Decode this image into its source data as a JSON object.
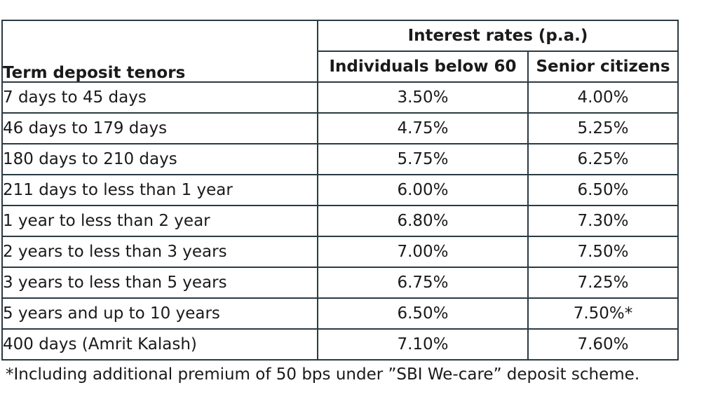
{
  "table": {
    "group_header": "Interest rates (p.a.)",
    "tenor_header": "Term deposit tenors",
    "col_individuals": "Individuals below 60",
    "col_seniors": "Senior citizens",
    "rows": [
      {
        "tenor": "7 days to 45 days",
        "individuals": "3.50%",
        "seniors": "4.00%"
      },
      {
        "tenor": "46 days to 179 days",
        "individuals": "4.75%",
        "seniors": "5.25%"
      },
      {
        "tenor": "180 days to 210 days",
        "individuals": "5.75%",
        "seniors": "6.25%"
      },
      {
        "tenor": "211 days to less than 1 year",
        "individuals": "6.00%",
        "seniors": "6.50%"
      },
      {
        "tenor": "1 year to less than 2 year",
        "individuals": "6.80%",
        "seniors": "7.30%"
      },
      {
        "tenor": "2 years to less than 3 years",
        "individuals": "7.00%",
        "seniors": "7.50%"
      },
      {
        "tenor": "3 years to less than 5 years",
        "individuals": "6.75%",
        "seniors": "7.25%"
      },
      {
        "tenor": "5 years and up to 10 years",
        "individuals": "6.50%",
        "seniors": "7.50%*"
      },
      {
        "tenor": "400 days (Amrit Kalash)",
        "individuals": "7.10%",
        "seniors": "7.60%"
      }
    ]
  },
  "footnote": "*Including additional premium of 50 bps under ”SBI We-care” deposit scheme."
}
